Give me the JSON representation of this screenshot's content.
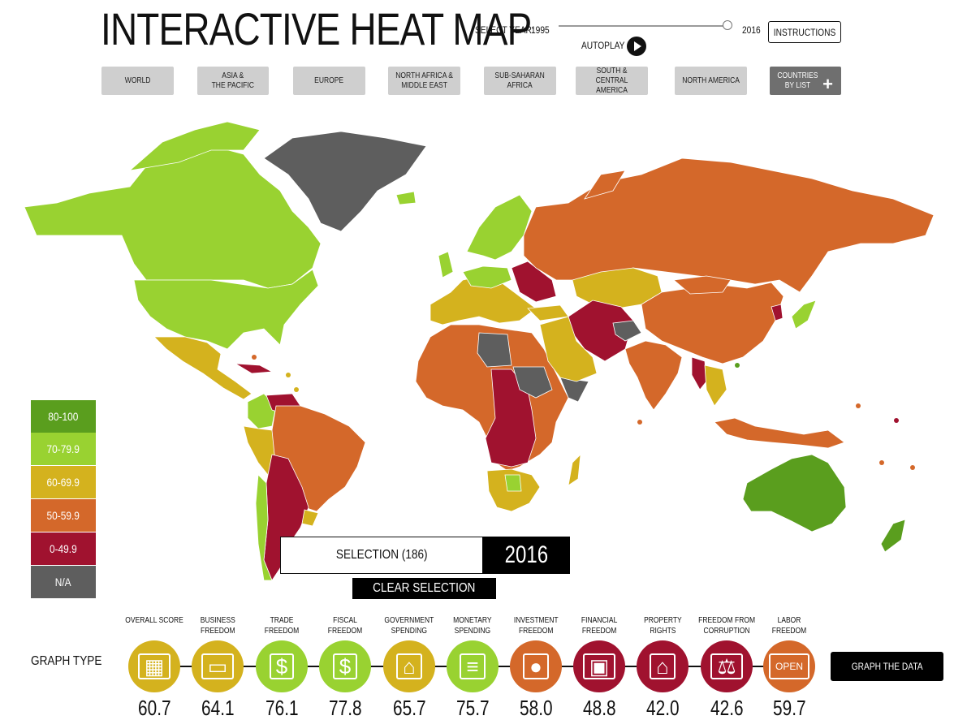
{
  "header": {
    "title": "INTERACTIVE HEAT MAP",
    "select_year_label": "SELECT YEAR:",
    "year_start": "1995",
    "year_end": "2016",
    "year_position": 1.0,
    "autoplay_label": "AUTOPLAY",
    "instructions_label": "INSTRUCTIONS"
  },
  "regions": [
    {
      "label": "WORLD"
    },
    {
      "label": "ASIA &\nTHE PACIFIC"
    },
    {
      "label": "EUROPE"
    },
    {
      "label": "NORTH AFRICA &\nMIDDLE EAST"
    },
    {
      "label": "SUB-SAHARAN\nAFRICA"
    },
    {
      "label": "SOUTH & CENTRAL\nAMERICA"
    },
    {
      "label": "NORTH AMERICA"
    },
    {
      "label": "COUNTRIES\nBY LIST"
    }
  ],
  "legend": [
    {
      "label": "80-100",
      "color": "#5a9e1e"
    },
    {
      "label": "70-79.9",
      "color": "#99d231"
    },
    {
      "label": "60-69.9",
      "color": "#d4b21e"
    },
    {
      "label": "50-59.9",
      "color": "#d4682a"
    },
    {
      "label": "0-49.9",
      "color": "#a0122f"
    },
    {
      "label": "N/A",
      "color": "#5e5e5e"
    }
  ],
  "selection": {
    "label": "SELECTION (186)",
    "year": "2016",
    "clear_label": "CLEAR SELECTION"
  },
  "graph": {
    "type_label": "GRAPH TYPE",
    "button_label": "GRAPH THE DATA",
    "items": [
      {
        "label": "OVERALL SCORE",
        "score": "60.7",
        "color": "#d4b21e",
        "icon": "calculator-icon"
      },
      {
        "label": "BUSINESS\nFREEDOM",
        "score": "64.1",
        "color": "#d4b21e",
        "icon": "briefcase-icon"
      },
      {
        "label": "TRADE\nFREEDOM",
        "score": "76.1",
        "color": "#99d231",
        "icon": "currency-icon"
      },
      {
        "label": "FISCAL\nFREEDOM",
        "score": "77.8",
        "color": "#99d231",
        "icon": "money-bag-icon"
      },
      {
        "label": "GOVERNMENT\nSPENDING",
        "score": "65.7",
        "color": "#d4b21e",
        "icon": "capitol-icon"
      },
      {
        "label": "MONETARY\nSPENDING",
        "score": "75.7",
        "color": "#99d231",
        "icon": "coins-icon"
      },
      {
        "label": "INVESTMENT\nFREEDOM",
        "score": "58.0",
        "color": "#d4682a",
        "icon": "piggy-bank-icon"
      },
      {
        "label": "FINANCIAL\nFREEDOM",
        "score": "48.8",
        "color": "#a0122f",
        "icon": "safe-icon"
      },
      {
        "label": "PROPERTY\nRIGHTS",
        "score": "42.0",
        "color": "#a0122f",
        "icon": "house-icon"
      },
      {
        "label": "FREEDOM FROM\nCORRUPTION",
        "score": "42.6",
        "color": "#a0122f",
        "icon": "scales-icon"
      },
      {
        "label": "LABOR\nFREEDOM",
        "score": "59.7",
        "color": "#d4682a",
        "icon": "open-sign-icon"
      }
    ]
  }
}
